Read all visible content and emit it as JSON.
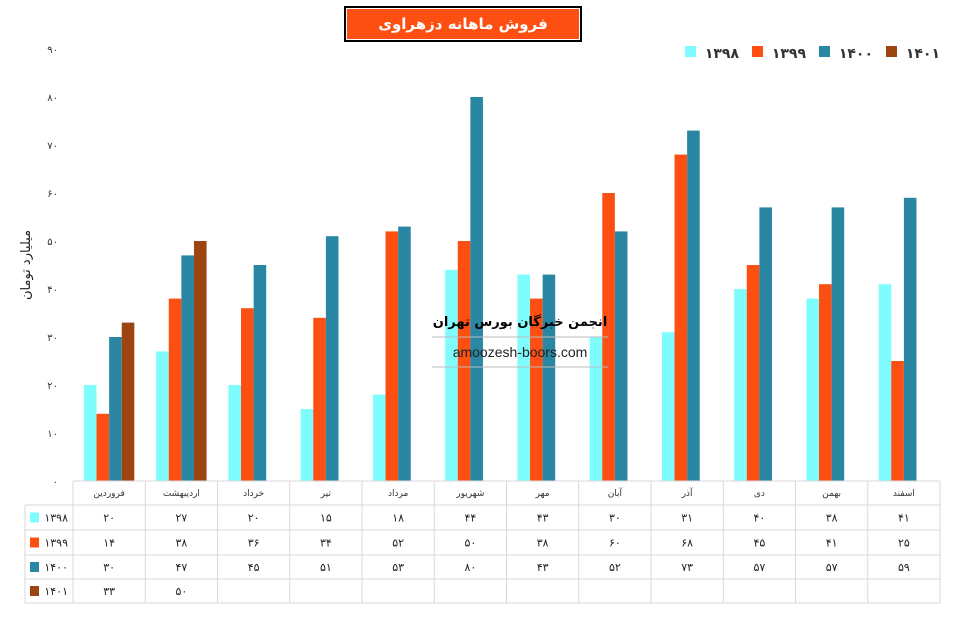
{
  "chart_data": {
    "type": "bar",
    "title": "فروش ماهانه دزهراوی",
    "ylabel": "میلیارد تومان",
    "xlabel": "",
    "ylim": [
      0,
      90
    ],
    "yticks": [
      "۰",
      "۱۰",
      "۲۰",
      "۳۰",
      "۴۰",
      "۵۰",
      "۶۰",
      "۷۰",
      "۸۰",
      "۹۰"
    ],
    "grid": false,
    "legend_position": "top-right",
    "categories": [
      "فروردین",
      "اردیبهشت",
      "خرداد",
      "تیر",
      "مرداد",
      "شهریور",
      "مهر",
      "آبان",
      "آذر",
      "دی",
      "بهمن",
      "اسفند"
    ],
    "series": [
      {
        "name": "۱۳۹۸",
        "color": "#7ffcfd",
        "values": [
          20,
          27,
          20,
          15,
          18,
          44,
          43,
          30,
          31,
          40,
          38,
          41
        ]
      },
      {
        "name": "۱۳۹۹",
        "color": "#fd4f12",
        "values": [
          14,
          38,
          36,
          34,
          52,
          50,
          38,
          60,
          68,
          45,
          41,
          25
        ]
      },
      {
        "name": "۱۴۰۰",
        "color": "#2a87a3",
        "values": [
          30,
          47,
          45,
          51,
          53,
          80,
          43,
          52,
          73,
          57,
          57,
          59
        ]
      },
      {
        "name": "۱۴۰۱",
        "color": "#9c4412",
        "values": [
          33,
          50,
          null,
          null,
          null,
          null,
          null,
          null,
          null,
          null,
          null,
          null
        ]
      }
    ],
    "data_table": true
  },
  "watermark": {
    "line1": "انجمن خبرگان بورس تهران",
    "line2": "amoozesh-boors.com"
  }
}
